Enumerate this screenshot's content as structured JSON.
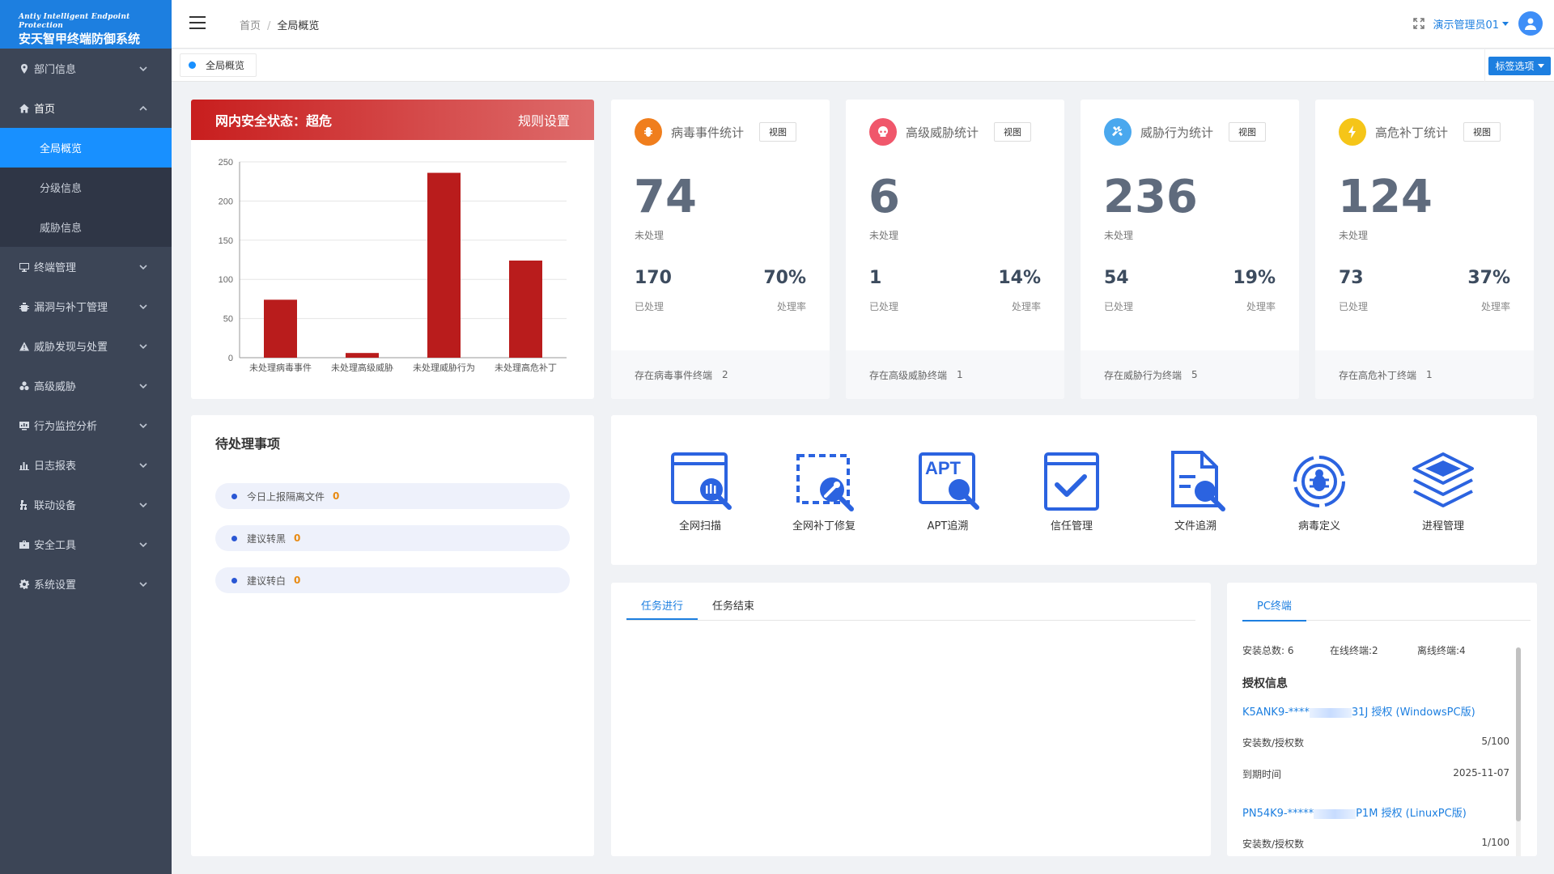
{
  "logo": {
    "en": "Antiy Intelligent Endpoint Protection",
    "cn": "安天智甲终端防御系统"
  },
  "sidebar": {
    "items": [
      {
        "label": "部门信息",
        "icon": "location-pin-icon"
      },
      {
        "label": "首页",
        "icon": "home-icon",
        "sub": [
          {
            "label": "全局概览"
          },
          {
            "label": "分级信息"
          },
          {
            "label": "威胁信息"
          }
        ]
      },
      {
        "label": "终端管理",
        "icon": "monitor-icon"
      },
      {
        "label": "漏洞与补丁管理",
        "icon": "bug-icon"
      },
      {
        "label": "威胁发现与处置",
        "icon": "warning-icon"
      },
      {
        "label": "高级威胁",
        "icon": "biohazard-icon"
      },
      {
        "label": "行为监控分析",
        "icon": "chart-screen-icon"
      },
      {
        "label": "日志报表",
        "icon": "bar-chart-icon"
      },
      {
        "label": "联动设备",
        "icon": "link-icon"
      },
      {
        "label": "安全工具",
        "icon": "toolbox-icon"
      },
      {
        "label": "系统设置",
        "icon": "gear-icon"
      }
    ]
  },
  "header": {
    "breadcrumb": [
      "首页",
      "全局概览"
    ],
    "sep": "/",
    "user": "演示管理员01"
  },
  "tags": {
    "active": "全局概览",
    "options_label": "标签选项"
  },
  "status": {
    "title": "网内安全状态：超危",
    "rules_link": "规则设置",
    "chart_data": {
      "type": "bar",
      "categories": [
        "未处理病毒事件",
        "未处理高级威胁",
        "未处理威胁行为",
        "未处理高危补丁"
      ],
      "values": [
        74,
        6,
        236,
        124
      ],
      "ylim": [
        0,
        250
      ],
      "yticks": [
        0,
        50,
        100,
        150,
        200,
        250
      ],
      "grid": true,
      "bar_color": "#b91c1c"
    }
  },
  "stats": [
    {
      "title": "病毒事件统计",
      "icon": "virus-icon",
      "color": "#f07e1d",
      "view": "视图",
      "big": "74",
      "big_lbl": "未处理",
      "done": "170",
      "done_lbl": "已处理",
      "rate": "70%",
      "rate_lbl": "处理率",
      "foot": "存在病毒事件终端",
      "foot_n": "2"
    },
    {
      "title": "高级威胁统计",
      "icon": "skull-icon",
      "color": "#f0576b",
      "view": "视图",
      "big": "6",
      "big_lbl": "未处理",
      "done": "1",
      "done_lbl": "已处理",
      "rate": "14%",
      "rate_lbl": "处理率",
      "foot": "存在高级威胁终端",
      "foot_n": "1"
    },
    {
      "title": "威胁行为统计",
      "icon": "tools-icon",
      "color": "#4aa8ee",
      "view": "视图",
      "big": "236",
      "big_lbl": "未处理",
      "done": "54",
      "done_lbl": "已处理",
      "rate": "19%",
      "rate_lbl": "处理率",
      "foot": "存在威胁行为终端",
      "foot_n": "5"
    },
    {
      "title": "高危补丁统计",
      "icon": "lightning-icon",
      "color": "#f5c518",
      "view": "视图",
      "big": "124",
      "big_lbl": "未处理",
      "done": "73",
      "done_lbl": "已处理",
      "rate": "37%",
      "rate_lbl": "处理率",
      "foot": "存在高危补丁终端",
      "foot_n": "1"
    }
  ],
  "pending": {
    "title": "待处理事项",
    "items": [
      {
        "label": "今日上报隔离文件",
        "count": "0"
      },
      {
        "label": "建议转黑",
        "count": "0"
      },
      {
        "label": "建议转白",
        "count": "0"
      }
    ]
  },
  "tools": [
    {
      "label": "全网扫描",
      "icon": "network-scan-icon"
    },
    {
      "label": "全网补丁修复",
      "icon": "patch-repair-icon"
    },
    {
      "label": "APT追溯",
      "icon": "apt-trace-icon"
    },
    {
      "label": "信任管理",
      "icon": "trust-check-icon"
    },
    {
      "label": "文件追溯",
      "icon": "file-search-icon"
    },
    {
      "label": "病毒定义",
      "icon": "virus-target-icon"
    },
    {
      "label": "进程管理",
      "icon": "layers-icon"
    }
  ],
  "tasks": {
    "tabs": [
      "任务进行",
      "任务结束"
    ]
  },
  "pc": {
    "tab": "PC终端",
    "install_total": "安装总数: 6",
    "online": "在线终端:2",
    "offline": "离线终端:4",
    "auth_title": "授权信息",
    "licenses": [
      {
        "key_start": "K5ANK9-****",
        "key_end": "31J 授权 (WindowsPC版)",
        "installs_lbl": "安装数/授权数",
        "installs": "5/100",
        "expire_lbl": "到期时间",
        "expire": "2025-11-07"
      },
      {
        "key_start": "PN54K9-*****",
        "key_end": "P1M 授权 (LinuxPC版)",
        "installs_lbl": "安装数/授权数",
        "installs": "1/100"
      }
    ]
  }
}
